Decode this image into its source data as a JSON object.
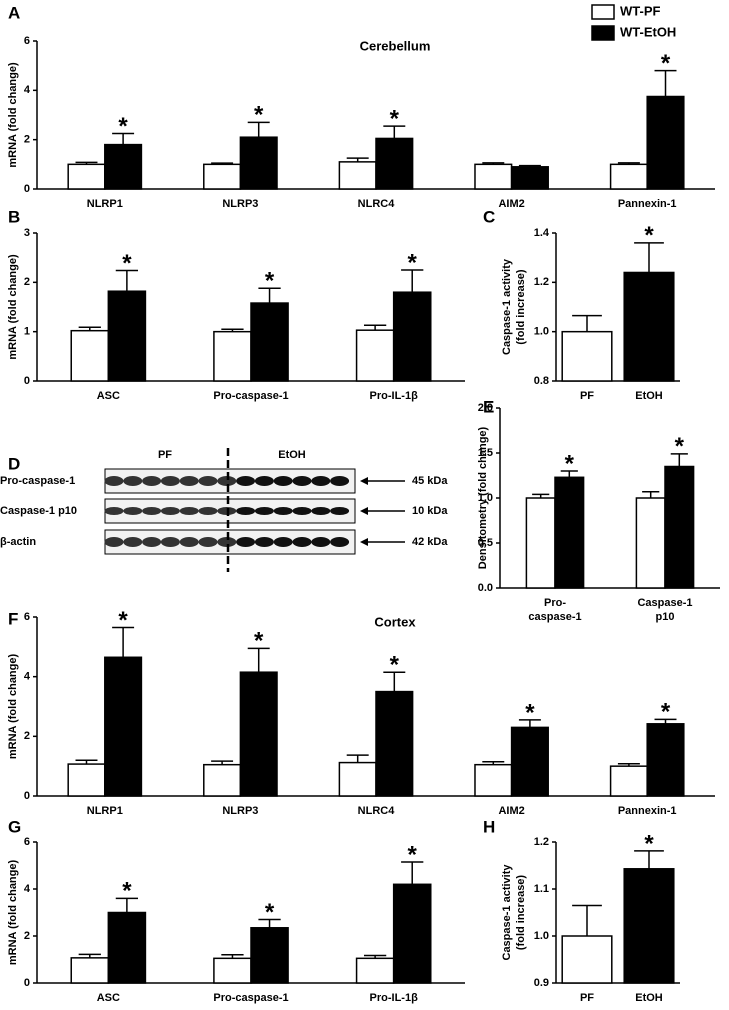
{
  "chart_data": [
    {
      "type": "bar",
      "panel": "A",
      "title": "Cerebellum",
      "ylabel": [
        "mRNA (fold change)"
      ],
      "categories": [
        "NLRP1",
        "NLRP3",
        "NLRC4",
        "AIM2",
        "Pannexin-1"
      ],
      "series": [
        {
          "name": "WT-PF",
          "color": "#ffffff",
          "values": [
            1.0,
            1.0,
            1.1,
            1.0,
            1.0
          ],
          "errors": [
            0.08,
            0.05,
            0.15,
            0.06,
            0.06
          ]
        },
        {
          "name": "WT-EtOH",
          "color": "#000000",
          "values": [
            1.8,
            2.1,
            2.05,
            0.9,
            3.75
          ],
          "errors": [
            0.45,
            0.6,
            0.5,
            0.05,
            1.05
          ],
          "markers": [
            "*",
            "*",
            "*",
            null,
            "*"
          ]
        }
      ],
      "ylim": [
        0,
        6
      ],
      "yticks": [
        0,
        2,
        4,
        6
      ]
    },
    {
      "type": "bar",
      "panel": "B",
      "ylabel": [
        "mRNA (fold change)"
      ],
      "categories": [
        "ASC",
        "Pro-caspase-1",
        "Pro-IL-1β"
      ],
      "series": [
        {
          "color": "#ffffff",
          "values": [
            1.02,
            1.0,
            1.03
          ],
          "errors": [
            0.07,
            0.05,
            0.1
          ]
        },
        {
          "color": "#000000",
          "values": [
            1.82,
            1.58,
            1.8
          ],
          "errors": [
            0.42,
            0.3,
            0.45
          ],
          "markers": [
            "*",
            "*",
            "*"
          ]
        }
      ],
      "ylim": [
        0,
        3
      ],
      "yticks": [
        0,
        1,
        2,
        3
      ]
    },
    {
      "type": "bar",
      "panel": "C",
      "ylabel": [
        "Caspase-1 activity",
        "(fold increase)"
      ],
      "categories": [
        "PF",
        "EtOH"
      ],
      "series": [
        {
          "colors": [
            "#ffffff",
            "#000000"
          ],
          "values": [
            1.0,
            1.24
          ],
          "errors": [
            0.065,
            0.12
          ],
          "markers": [
            null,
            "*"
          ]
        }
      ],
      "ylim": [
        0.8,
        1.4
      ],
      "yticks": [
        {
          "value": 0.8,
          "label": "0.8"
        },
        {
          "value": 1.0,
          "label": "1.0"
        },
        {
          "value": 1.2,
          "label": "1.2"
        },
        {
          "value": 1.4,
          "label": "1.4"
        }
      ]
    },
    {
      "type": "bar",
      "panel": "E",
      "ylabel": [
        "Densitometry (fold change)"
      ],
      "categories": [
        [
          "Pro-",
          "caspase-1"
        ],
        [
          "Caspase-1",
          "p10"
        ]
      ],
      "series": [
        {
          "color": "#ffffff",
          "values": [
            1.0,
            1.0
          ],
          "errors": [
            0.04,
            0.07
          ]
        },
        {
          "color": "#000000",
          "values": [
            1.23,
            1.35
          ],
          "errors": [
            0.07,
            0.14
          ],
          "markers": [
            "*",
            "*"
          ]
        }
      ],
      "ylim": [
        0,
        2
      ],
      "yticks": [
        {
          "value": 0,
          "label": "0.0"
        },
        {
          "value": 0.5,
          "label": "0.5"
        },
        {
          "value": 1,
          "label": "1.0"
        },
        {
          "value": 1.5,
          "label": "1.5"
        },
        {
          "value": 2,
          "label": "2.0"
        }
      ]
    },
    {
      "type": "bar",
      "panel": "F",
      "title": "Cortex",
      "ylabel": [
        "mRNA (fold change)"
      ],
      "categories": [
        "NLRP1",
        "NLRP3",
        "NLRC4",
        "AIM2",
        "Pannexin-1"
      ],
      "series": [
        {
          "color": "#ffffff",
          "values": [
            1.07,
            1.05,
            1.12,
            1.05,
            1.0
          ],
          "errors": [
            0.13,
            0.12,
            0.25,
            0.1,
            0.08
          ]
        },
        {
          "color": "#000000",
          "values": [
            4.65,
            4.15,
            3.5,
            2.3,
            2.42
          ],
          "errors": [
            1.0,
            0.8,
            0.65,
            0.25,
            0.15
          ],
          "markers": [
            "*",
            "*",
            "*",
            "*",
            "*"
          ]
        }
      ],
      "ylim": [
        0,
        6
      ],
      "yticks": [
        0,
        2,
        4,
        6
      ]
    },
    {
      "type": "bar",
      "panel": "G",
      "ylabel": [
        "mRNA (fold change)"
      ],
      "categories": [
        "ASC",
        "Pro-caspase-1",
        "Pro-IL-1β"
      ],
      "series": [
        {
          "color": "#ffffff",
          "values": [
            1.07,
            1.05,
            1.05
          ],
          "errors": [
            0.15,
            0.15,
            0.12
          ]
        },
        {
          "color": "#000000",
          "values": [
            3.0,
            2.35,
            4.2
          ],
          "errors": [
            0.6,
            0.35,
            0.95
          ],
          "markers": [
            "*",
            "*",
            "*"
          ]
        }
      ],
      "ylim": [
        0,
        6
      ],
      "yticks": [
        0,
        2,
        4,
        6
      ]
    },
    {
      "type": "bar",
      "panel": "H",
      "ylabel": [
        "Caspase-1 activity",
        "(fold increase)"
      ],
      "categories": [
        "PF",
        "EtOH"
      ],
      "series": [
        {
          "colors": [
            "#ffffff",
            "#000000"
          ],
          "values": [
            1.0,
            1.143
          ],
          "errors": [
            0.065,
            0.038
          ],
          "markers": [
            null,
            "*"
          ]
        }
      ],
      "ylim": [
        0.9,
        1.2
      ],
      "yticks": [
        {
          "value": 0.9,
          "label": "0.9"
        },
        {
          "value": 1.0,
          "label": "1.0"
        },
        {
          "value": 1.1,
          "label": "1.1"
        },
        {
          "value": 1.2,
          "label": "1.2"
        }
      ]
    }
  ],
  "blot": {
    "panel": "D",
    "groups": [
      "PF",
      "EtOH"
    ],
    "rows": [
      "Pro-caspase-1",
      "Caspase-1 p10",
      "β-actin"
    ],
    "sizes": [
      "45 kDa",
      "10 kDa",
      "42 kDa"
    ]
  }
}
